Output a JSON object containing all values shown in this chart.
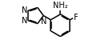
{
  "bg_color": "#ffffff",
  "line_color": "#000000",
  "lw": 1.1,
  "fs": 7.0,
  "figsize": [
    1.21,
    0.6
  ],
  "dpi": 100,
  "xlim": [
    0.0,
    1.21
  ],
  "ylim": [
    0.0,
    0.6
  ]
}
